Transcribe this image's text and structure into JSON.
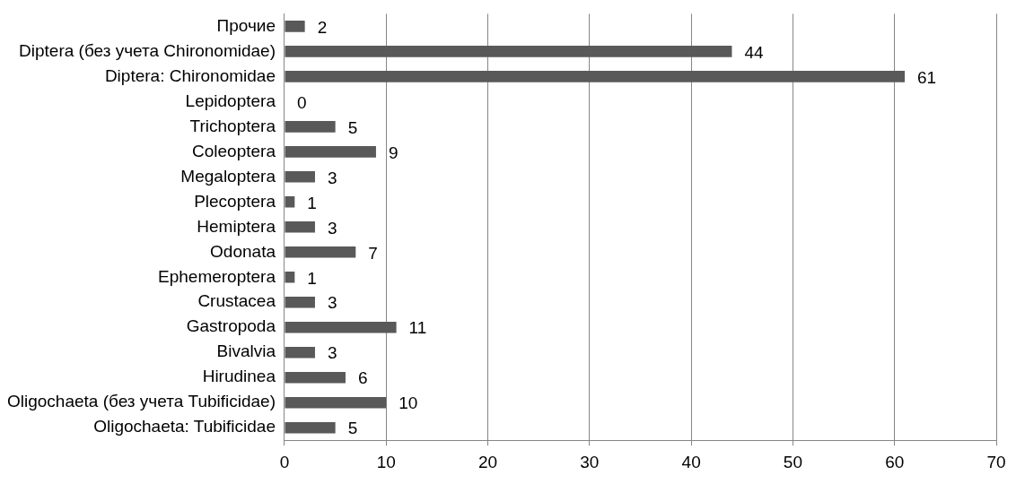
{
  "chart_data": {
    "type": "bar",
    "orientation": "horizontal",
    "categories": [
      "Прочие",
      "Diptera (без учета Chironomidae)",
      "Diptera: Chironomidae",
      "Lepidoptera",
      "Trichoptera",
      "Coleoptera",
      "Megaloptera",
      "Plecoptera",
      "Hemiptera",
      "Odonata",
      "Ephemeroptera",
      "Crustacea",
      "Gastropoda",
      "Bivalvia",
      "Hirudinea",
      "Oligochaeta (без учета Tubificidae)",
      "Oligochaeta: Tubificidae"
    ],
    "values": [
      2,
      44,
      61,
      0,
      5,
      9,
      3,
      1,
      3,
      7,
      1,
      3,
      11,
      3,
      6,
      10,
      5
    ],
    "color": "#595959",
    "xlim": [
      0,
      70
    ],
    "xticks": [
      0,
      10,
      20,
      30,
      40,
      50,
      60,
      70
    ],
    "grid": "x",
    "data_labels": true,
    "legend": false
  }
}
